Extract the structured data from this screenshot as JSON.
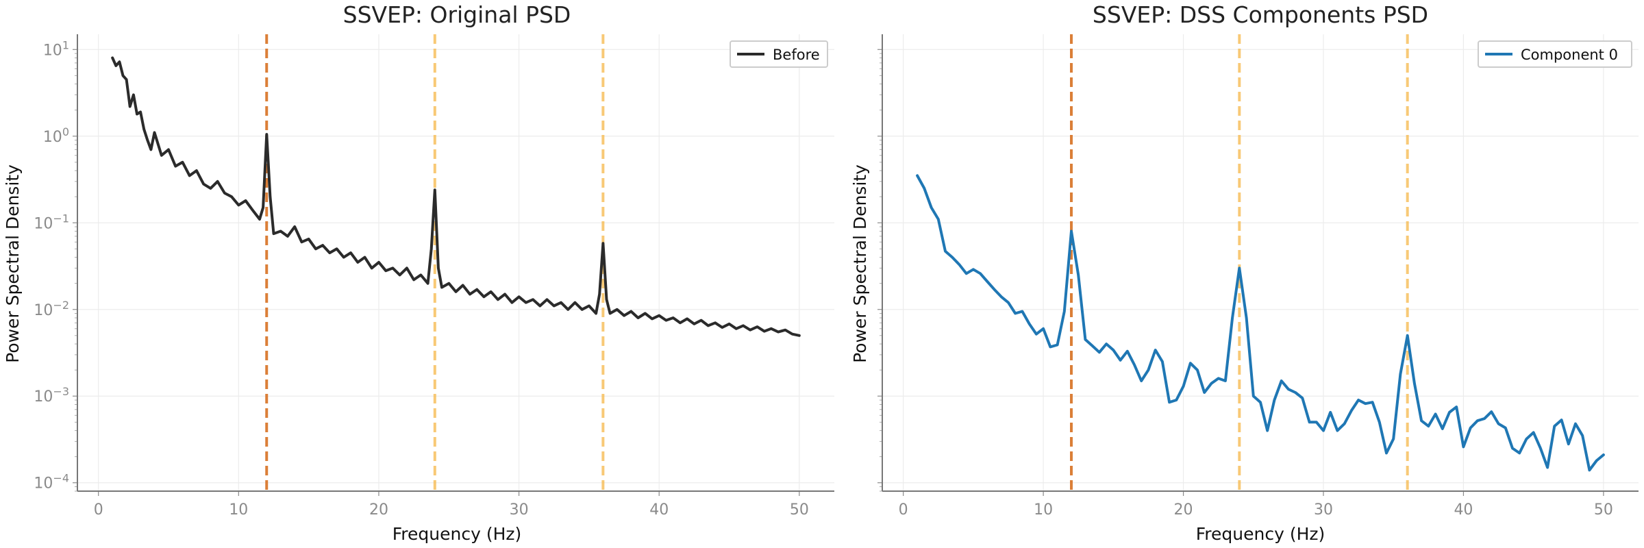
{
  "chart_data": [
    {
      "type": "line",
      "title": "SSVEP: Original PSD",
      "xlabel": "Frequency (Hz)",
      "ylabel": "Power Spectral Density",
      "xlim": [
        -1.5,
        52.5
      ],
      "ylim": [
        8e-05,
        15
      ],
      "yscale": "log",
      "grid": true,
      "legend_position": "top-right",
      "x_ticks": [
        {
          "value": 0,
          "label": "0"
        },
        {
          "value": 10,
          "label": "10"
        },
        {
          "value": 20,
          "label": "20"
        },
        {
          "value": 30,
          "label": "30"
        },
        {
          "value": 40,
          "label": "40"
        },
        {
          "value": 50,
          "label": "50"
        }
      ],
      "y_ticks": [
        {
          "value": 0.0001,
          "base": "10",
          "exp": "−4"
        },
        {
          "value": 0.001,
          "base": "10",
          "exp": "−3"
        },
        {
          "value": 0.01,
          "base": "10",
          "exp": "−2"
        },
        {
          "value": 0.1,
          "base": "10",
          "exp": "−1"
        },
        {
          "value": 1,
          "base": "10",
          "exp": "0"
        },
        {
          "value": 10,
          "base": "10",
          "exp": "1"
        }
      ],
      "reference_lines": [
        {
          "x": 12,
          "color": "#D9782D",
          "opacity": 0.95
        },
        {
          "x": 24,
          "color": "#F6B748",
          "opacity": 0.75
        },
        {
          "x": 36,
          "color": "#F6B748",
          "opacity": 0.75
        }
      ],
      "series": [
        {
          "name": "Before",
          "color": "#2b2b2b",
          "x": [
            1.0,
            1.25,
            1.5,
            1.75,
            2.0,
            2.25,
            2.5,
            2.75,
            3.0,
            3.25,
            3.5,
            3.75,
            4.0,
            4.5,
            5.0,
            5.5,
            6.0,
            6.5,
            7.0,
            7.5,
            8.0,
            8.5,
            9.0,
            9.5,
            10.0,
            10.5,
            11.0,
            11.5,
            11.75,
            12.0,
            12.25,
            12.5,
            13.0,
            13.5,
            14.0,
            14.5,
            15.0,
            15.5,
            16.0,
            16.5,
            17.0,
            17.5,
            18.0,
            18.5,
            19.0,
            19.5,
            20.0,
            20.5,
            21.0,
            21.5,
            22.0,
            22.5,
            23.0,
            23.5,
            23.75,
            24.0,
            24.25,
            24.5,
            25.0,
            25.5,
            26.0,
            26.5,
            27.0,
            27.5,
            28.0,
            28.5,
            29.0,
            29.5,
            30.0,
            30.5,
            31.0,
            31.5,
            32.0,
            32.5,
            33.0,
            33.5,
            34.0,
            34.5,
            35.0,
            35.5,
            35.75,
            36.0,
            36.25,
            36.5,
            37.0,
            37.5,
            38.0,
            38.5,
            39.0,
            39.5,
            40.0,
            40.5,
            41.0,
            41.5,
            42.0,
            42.5,
            43.0,
            43.5,
            44.0,
            44.5,
            45.0,
            45.5,
            46.0,
            46.5,
            47.0,
            47.5,
            48.0,
            48.5,
            49.0,
            49.5,
            50.0
          ],
          "values": [
            8.0,
            6.5,
            7.2,
            5.0,
            4.5,
            2.2,
            3.0,
            1.8,
            1.9,
            1.2,
            0.9,
            0.7,
            1.1,
            0.6,
            0.7,
            0.45,
            0.5,
            0.35,
            0.4,
            0.28,
            0.25,
            0.3,
            0.22,
            0.2,
            0.16,
            0.18,
            0.14,
            0.11,
            0.15,
            1.05,
            0.2,
            0.075,
            0.08,
            0.07,
            0.09,
            0.06,
            0.065,
            0.05,
            0.055,
            0.045,
            0.05,
            0.04,
            0.045,
            0.035,
            0.04,
            0.03,
            0.035,
            0.028,
            0.03,
            0.025,
            0.03,
            0.022,
            0.025,
            0.02,
            0.05,
            0.24,
            0.03,
            0.018,
            0.02,
            0.016,
            0.019,
            0.015,
            0.017,
            0.014,
            0.016,
            0.013,
            0.015,
            0.012,
            0.014,
            0.012,
            0.013,
            0.011,
            0.013,
            0.011,
            0.012,
            0.01,
            0.012,
            0.01,
            0.011,
            0.009,
            0.015,
            0.058,
            0.013,
            0.009,
            0.01,
            0.0085,
            0.0095,
            0.008,
            0.009,
            0.0078,
            0.0085,
            0.0075,
            0.008,
            0.007,
            0.0078,
            0.0068,
            0.0075,
            0.0065,
            0.007,
            0.0062,
            0.0068,
            0.006,
            0.0065,
            0.0058,
            0.0063,
            0.0056,
            0.006,
            0.0055,
            0.0058,
            0.0052,
            0.005
          ]
        }
      ]
    },
    {
      "type": "line",
      "title": "SSVEP: DSS Components PSD",
      "xlabel": "Frequency (Hz)",
      "ylabel": "Power Spectral Density",
      "xlim": [
        -1.5,
        52.5
      ],
      "ylim": [
        8e-05,
        15
      ],
      "yscale": "log",
      "grid": true,
      "legend_position": "top-right",
      "x_ticks": [
        {
          "value": 0,
          "label": "0"
        },
        {
          "value": 10,
          "label": "10"
        },
        {
          "value": 20,
          "label": "20"
        },
        {
          "value": 30,
          "label": "30"
        },
        {
          "value": 40,
          "label": "40"
        },
        {
          "value": 50,
          "label": "50"
        }
      ],
      "y_ticks": [],
      "reference_lines": [
        {
          "x": 12,
          "color": "#D9782D",
          "opacity": 0.95
        },
        {
          "x": 24,
          "color": "#F6B748",
          "opacity": 0.75
        },
        {
          "x": 36,
          "color": "#F6B748",
          "opacity": 0.75
        }
      ],
      "series": [
        {
          "name": "Component 0",
          "color": "#1F77B4",
          "x": [
            1.0,
            1.5,
            2.0,
            2.5,
            3.0,
            3.5,
            4.0,
            4.5,
            5.0,
            5.5,
            6.0,
            6.5,
            7.0,
            7.5,
            8.0,
            8.5,
            9.0,
            9.5,
            10.0,
            10.5,
            11.0,
            11.5,
            12.0,
            12.5,
            13.0,
            13.5,
            14.0,
            14.5,
            15.0,
            15.5,
            16.0,
            16.5,
            17.0,
            17.5,
            18.0,
            18.5,
            19.0,
            19.5,
            20.0,
            20.5,
            21.0,
            21.5,
            22.0,
            22.5,
            23.0,
            23.5,
            24.0,
            24.5,
            25.0,
            25.5,
            26.0,
            26.5,
            27.0,
            27.5,
            28.0,
            28.5,
            29.0,
            29.5,
            30.0,
            30.5,
            31.0,
            31.5,
            32.0,
            32.5,
            33.0,
            33.5,
            34.0,
            34.5,
            35.0,
            35.5,
            36.0,
            36.5,
            37.0,
            37.5,
            38.0,
            38.5,
            39.0,
            39.5,
            40.0,
            40.5,
            41.0,
            41.5,
            42.0,
            42.5,
            43.0,
            43.5,
            44.0,
            44.5,
            45.0,
            45.5,
            46.0,
            46.5,
            47.0,
            47.5,
            48.0,
            48.5,
            49.0,
            49.5,
            50.0
          ],
          "values": [
            0.35,
            0.25,
            0.15,
            0.11,
            0.047,
            0.04,
            0.033,
            0.026,
            0.029,
            0.026,
            0.021,
            0.017,
            0.014,
            0.012,
            0.009,
            0.0095,
            0.0068,
            0.0052,
            0.006,
            0.0037,
            0.0039,
            0.0095,
            0.08,
            0.025,
            0.0045,
            0.0038,
            0.0032,
            0.004,
            0.0034,
            0.0026,
            0.0033,
            0.0023,
            0.0015,
            0.002,
            0.0034,
            0.0025,
            0.00085,
            0.0009,
            0.0013,
            0.0024,
            0.002,
            0.0011,
            0.0014,
            0.0016,
            0.0015,
            0.008,
            0.03,
            0.008,
            0.001,
            0.00085,
            0.0004,
            0.0009,
            0.0015,
            0.0012,
            0.0011,
            0.00095,
            0.0005,
            0.0005,
            0.0004,
            0.00065,
            0.0004,
            0.00048,
            0.00068,
            0.0009,
            0.00082,
            0.00085,
            0.0005,
            0.00022,
            0.00032,
            0.0018,
            0.005,
            0.0014,
            0.00052,
            0.00045,
            0.00062,
            0.00042,
            0.00065,
            0.00075,
            0.00026,
            0.00043,
            0.00052,
            0.00055,
            0.00066,
            0.00048,
            0.00043,
            0.00025,
            0.00022,
            0.00032,
            0.00038,
            0.00025,
            0.00015,
            0.00045,
            0.00053,
            0.00028,
            0.00048,
            0.00035,
            0.00014,
            0.00018,
            0.00021
          ]
        }
      ]
    }
  ]
}
